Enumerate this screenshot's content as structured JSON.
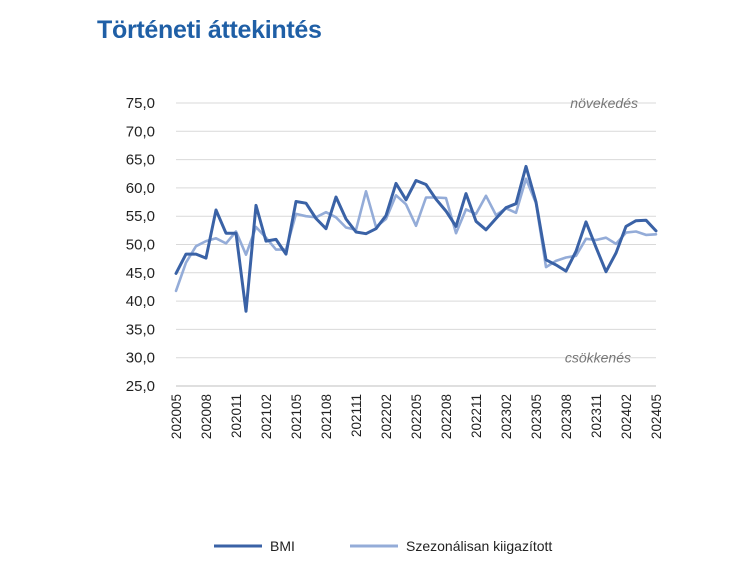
{
  "chart_data": {
    "type": "line",
    "title": "Történeti áttekintés",
    "xlabel": "",
    "ylabel": "",
    "ylim": [
      25,
      75
    ],
    "ytick_step": 5,
    "grid": true,
    "legend_position": "bottom",
    "annotations": {
      "top": "növekedés",
      "bottom": "csökkenés"
    },
    "x": [
      "202005",
      "202006",
      "202007",
      "202008",
      "202009",
      "202010",
      "202011",
      "202012",
      "202101",
      "202102",
      "202103",
      "202104",
      "202105",
      "202106",
      "202107",
      "202108",
      "202109",
      "202110",
      "202111",
      "202112",
      "202201",
      "202202",
      "202203",
      "202204",
      "202205",
      "202206",
      "202207",
      "202208",
      "202209",
      "202210",
      "202211",
      "202212",
      "202301",
      "202302",
      "202303",
      "202304",
      "202305",
      "202306",
      "202307",
      "202308",
      "202309",
      "202310",
      "202311",
      "202312",
      "202401",
      "202402",
      "202403",
      "202404",
      "202405"
    ],
    "xtick_labels": [
      "202005",
      "202008",
      "202011",
      "202102",
      "202105",
      "202108",
      "202111",
      "202202",
      "202205",
      "202208",
      "202211",
      "202302",
      "202305",
      "202308",
      "202311",
      "202402",
      "202405"
    ],
    "series": [
      {
        "name": "BMI",
        "color": "#3a62a6",
        "values": [
          44.9,
          48.3,
          48.3,
          47.6,
          56.1,
          52.0,
          52.0,
          38.2,
          56.9,
          50.6,
          50.9,
          48.3,
          57.6,
          57.3,
          54.6,
          52.8,
          58.4,
          54.5,
          52.2,
          51.9,
          52.8,
          55.1,
          60.8,
          57.9,
          61.3,
          60.6,
          58.0,
          55.9,
          53.2,
          59.0,
          54.1,
          52.6,
          54.6,
          56.5,
          57.2,
          63.8,
          57.5,
          47.3,
          46.4,
          45.3,
          48.8,
          54.0,
          49.5,
          45.2,
          48.5,
          53.2,
          54.2,
          54.3,
          52.4
        ]
      },
      {
        "name": "Szezonálisan kiigazított",
        "color": "#94acd8",
        "values": [
          41.8,
          46.8,
          49.7,
          50.6,
          51.1,
          50.2,
          52.3,
          48.2,
          53.1,
          51.2,
          49.1,
          49.1,
          55.4,
          55.0,
          54.8,
          55.7,
          54.8,
          53.0,
          52.6,
          59.4,
          53.1,
          54.5,
          58.7,
          57.1,
          53.3,
          58.3,
          58.3,
          58.2,
          52.0,
          56.2,
          55.4,
          58.6,
          55.2,
          56.4,
          55.6,
          61.6,
          57.3,
          46.0,
          47.1,
          47.7,
          48.0,
          51.0,
          50.8,
          51.2,
          50.1,
          52.1,
          52.3,
          51.7,
          51.8
        ]
      }
    ]
  }
}
